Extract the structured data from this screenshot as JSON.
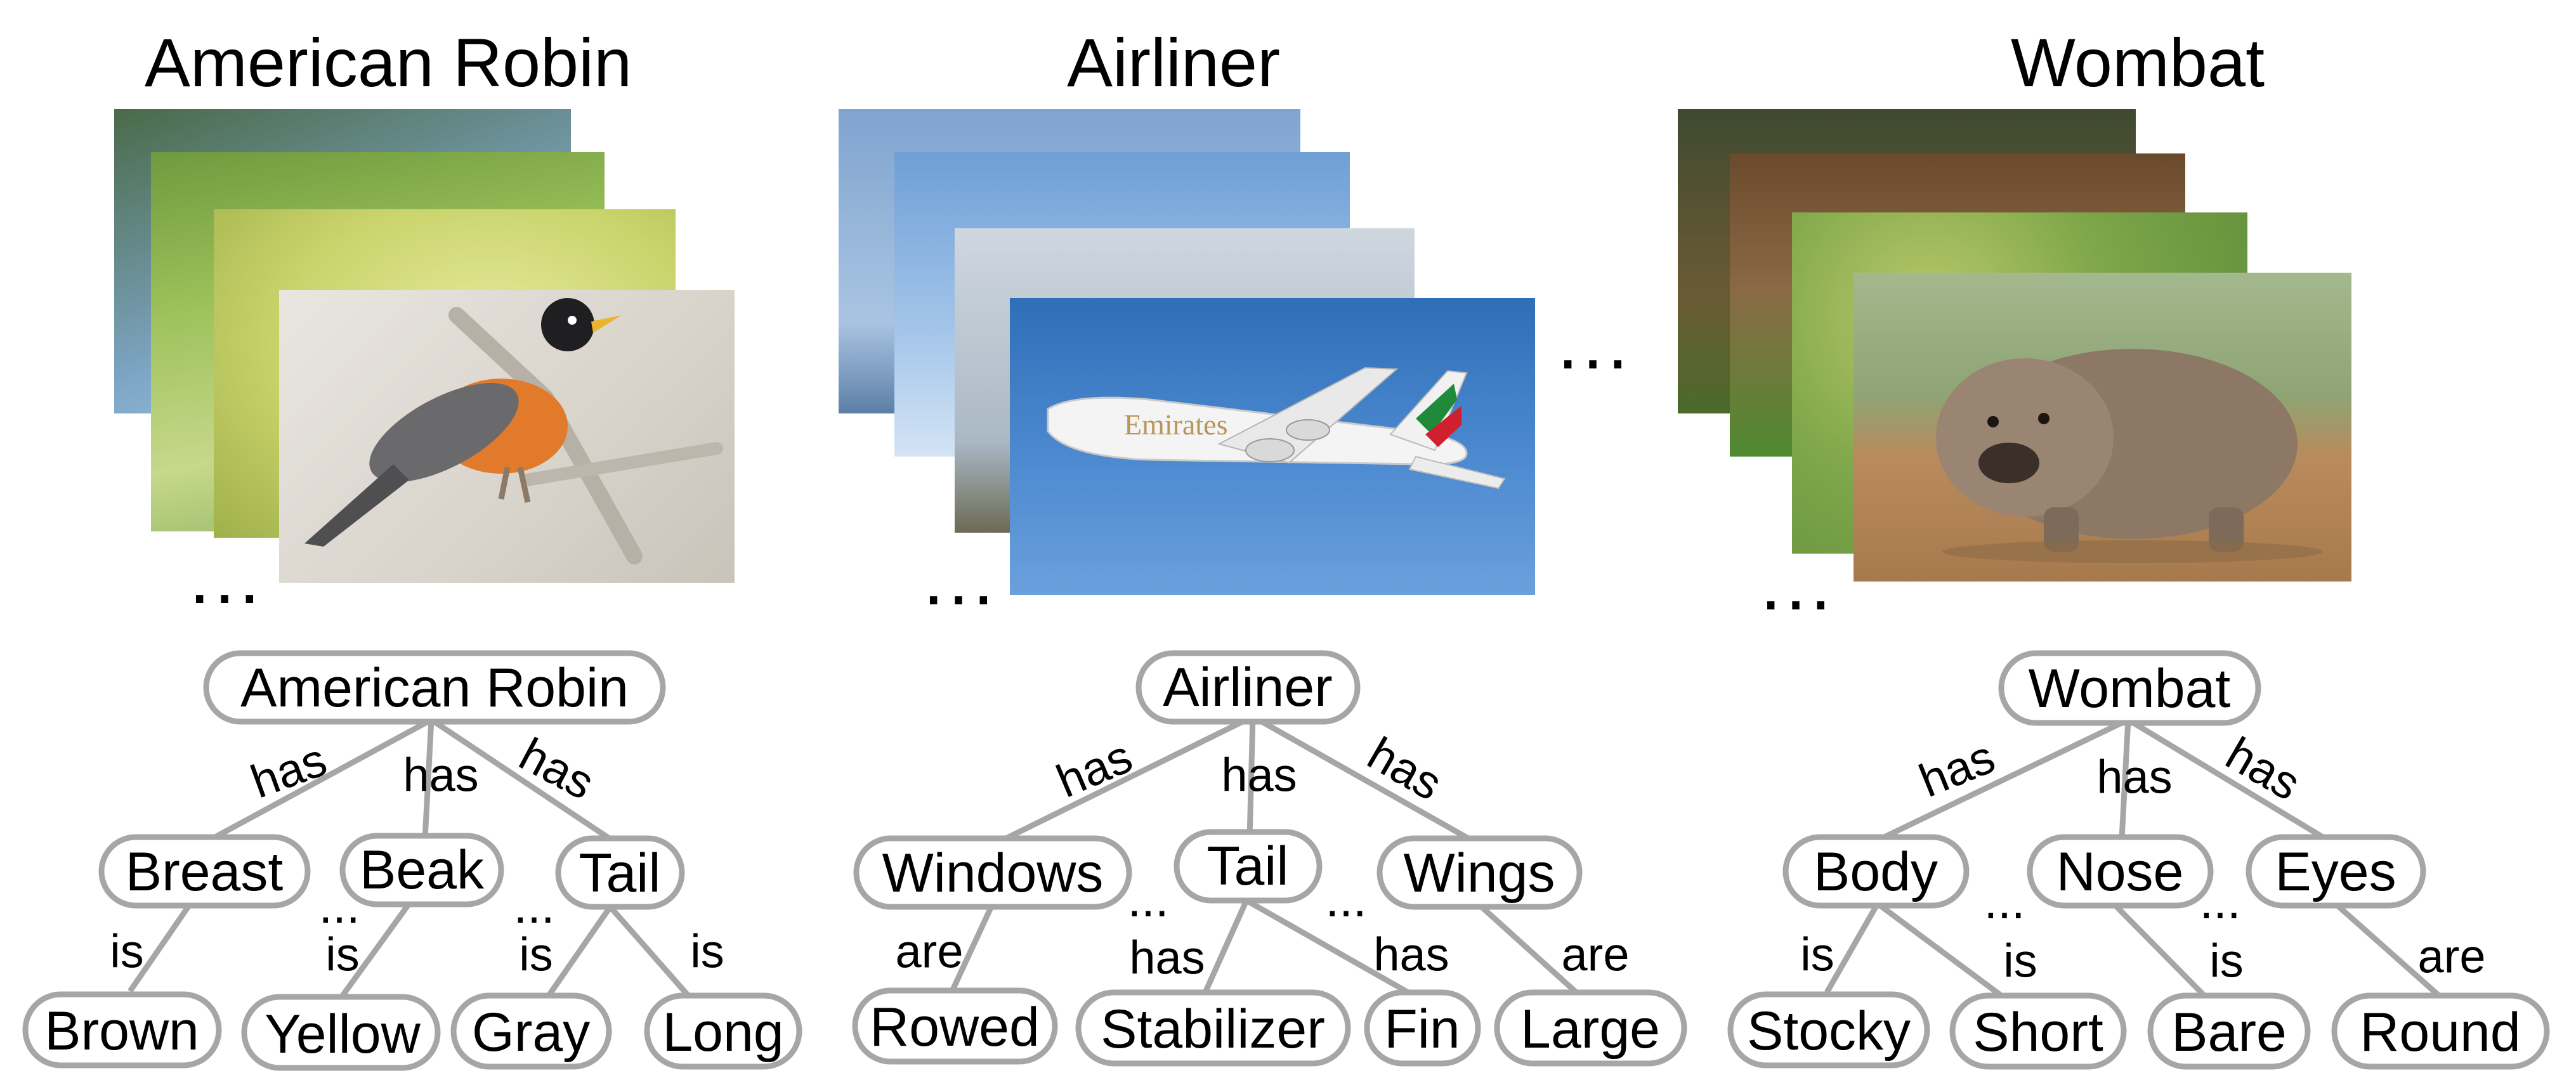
{
  "groups": [
    {
      "title": "American Robin",
      "nodes": {
        "root": "American Robin",
        "c1": "Breast",
        "c2": "Beak",
        "c3": "Tail",
        "g1": "Brown",
        "g2": "Yellow",
        "g3": "Gray",
        "g4": "Long"
      },
      "edges": {
        "r1": "has",
        "r2": "has",
        "r3": "has",
        "c1g1": "is",
        "c2g2": "is",
        "c3g3": "is",
        "c3g4": "is"
      },
      "ellipsis": "..."
    },
    {
      "title": "Airliner",
      "nodes": {
        "root": "Airliner",
        "c1": "Windows",
        "c2": "Tail",
        "c3": "Wings",
        "g1": "Rowed",
        "g2": "Stabilizer",
        "g3": "Fin",
        "g4": "Large"
      },
      "edges": {
        "r1": "has",
        "r2": "has",
        "r3": "has",
        "c1g1": "are",
        "c2g2": "has",
        "c2g3": "has",
        "c3g4": "are"
      },
      "ellipsis": "..."
    },
    {
      "title": "Wombat",
      "nodes": {
        "root": "Wombat",
        "c1": "Body",
        "c2": "Nose",
        "c3": "Eyes",
        "g1": "Stocky",
        "g2": "Short",
        "g3": "Bare",
        "g4": "Round"
      },
      "edges": {
        "r1": "has",
        "r2": "has",
        "r3": "has",
        "c1g1": "is",
        "c1g2": "is",
        "c2g3": "is",
        "c3g4": "are"
      },
      "ellipsis": "..."
    }
  ],
  "between_ellipsis": "...",
  "colors": {
    "node_border": "#a6a6a6",
    "edge": "#a6a6a6",
    "text": "#000000"
  }
}
